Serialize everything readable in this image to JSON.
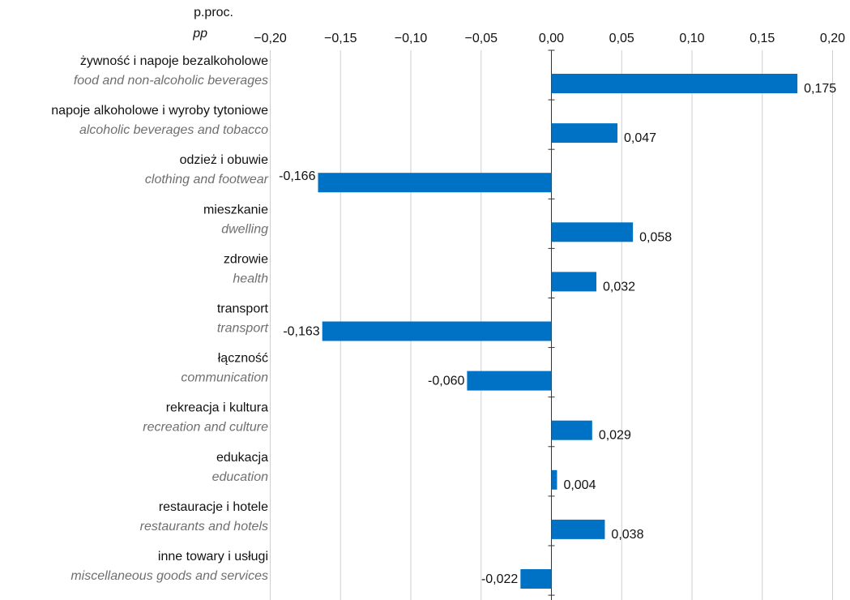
{
  "chart_data": {
    "type": "bar",
    "orientation": "horizontal",
    "unit_label": "p.proc.",
    "unit_label_en": "pp",
    "x_ticks": [
      "−0,20",
      "−0,15",
      "−0,10",
      "−0,05",
      "0,00",
      "0,05",
      "0,10",
      "0,15",
      "0,20"
    ],
    "x_tick_values": [
      -0.2,
      -0.15,
      -0.1,
      -0.05,
      0.0,
      0.05,
      0.1,
      0.15,
      0.2
    ],
    "xlim": [
      -0.2,
      0.2
    ],
    "grid": true,
    "bar_color": "#0072c6",
    "categories": [
      {
        "pl": "żywność i napoje bezalkoholowe",
        "en": "food and non-alcoholic beverages"
      },
      {
        "pl": "napoje alkoholowe i wyroby tytoniowe",
        "en": "alcoholic beverages and tobacco"
      },
      {
        "pl": "odzież i obuwie",
        "en": "clothing and footwear"
      },
      {
        "pl": "mieszkanie",
        "en": "dwelling"
      },
      {
        "pl": "zdrowie",
        "en": "health"
      },
      {
        "pl": "transport",
        "en": "transport"
      },
      {
        "pl": "łączność",
        "en": "communication"
      },
      {
        "pl": "rekreacja i kultura",
        "en": "recreation and culture"
      },
      {
        "pl": "edukacja",
        "en": "education"
      },
      {
        "pl": "restauracje i hotele",
        "en": "restaurants and hotels"
      },
      {
        "pl": "inne towary i usługi",
        "en": "miscellaneous goods and services"
      }
    ],
    "values": [
      0.175,
      0.047,
      -0.166,
      0.058,
      0.032,
      -0.163,
      -0.06,
      0.029,
      0.004,
      0.038,
      -0.022
    ],
    "value_labels": [
      "0,175",
      "0,047",
      "-0,166",
      "0,058",
      "0,032",
      "-0,163",
      "-0,060",
      "0,029",
      "0,004",
      "0,038",
      "-0,022"
    ]
  }
}
